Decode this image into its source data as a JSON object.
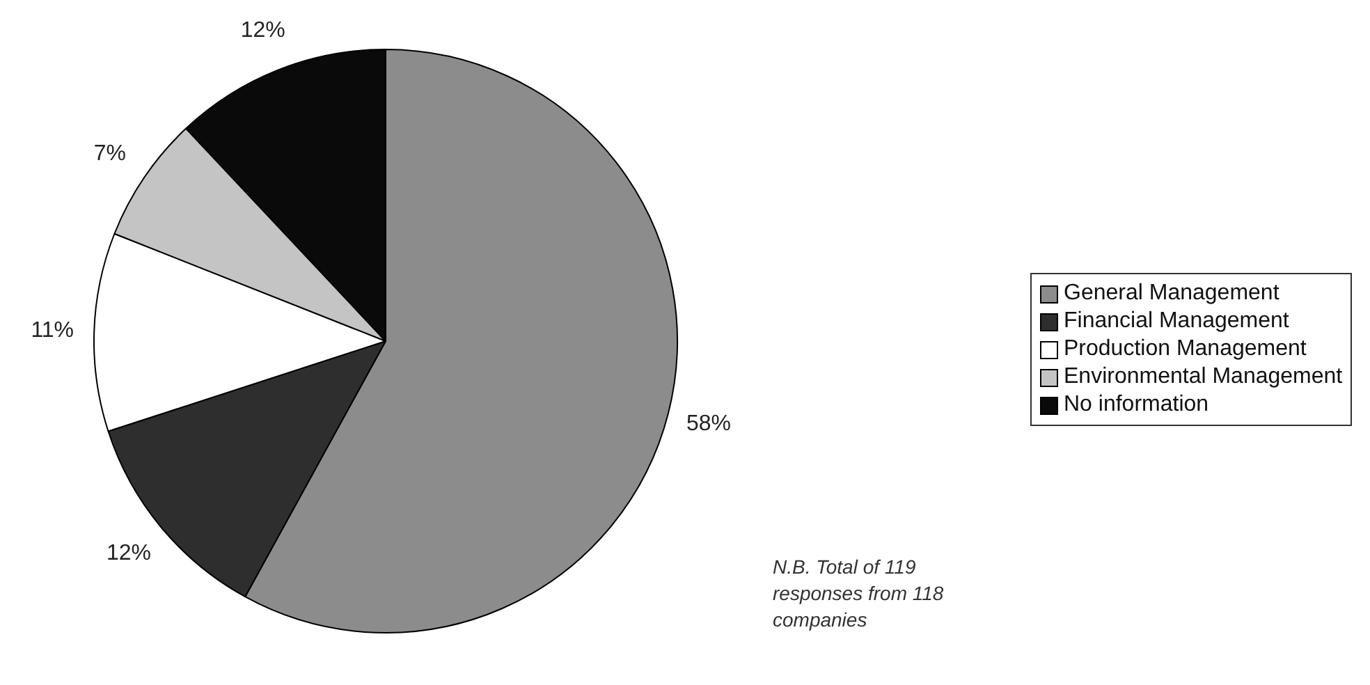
{
  "chart_data": {
    "type": "pie",
    "categories": [
      "General Management",
      "Financial Management",
      "Production Management",
      "Environmental Management",
      "No information"
    ],
    "values": [
      58,
      12,
      11,
      7,
      12
    ],
    "colors": [
      "#8c8c8c",
      "#2e2e2e",
      "#ffffff",
      "#c4c4c4",
      "#0a0a0a"
    ],
    "value_labels": [
      "58%",
      "12%",
      "11%",
      "7%",
      "12%"
    ],
    "legend": "right",
    "annotations": [
      "N.B. Total of 119 responses from 118 companies"
    ]
  }
}
